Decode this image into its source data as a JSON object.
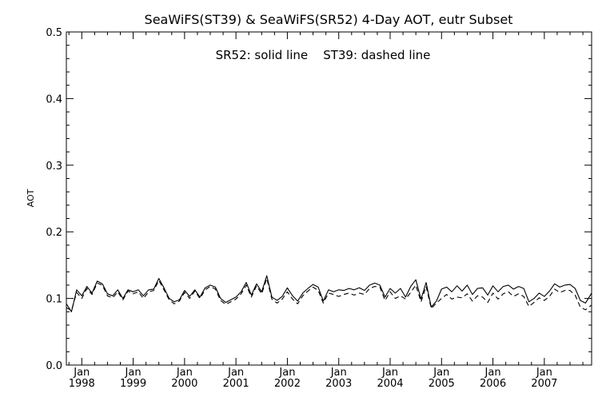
{
  "chart_data": {
    "type": "line",
    "title": "SeaWiFS(ST39) & SeaWiFS(SR52) 4-Day AOT, eutr Subset",
    "annotation": "SR52: solid line    ST39: dashed line",
    "ylabel": "AOT",
    "ylim": [
      0.0,
      0.5
    ],
    "xlim": [
      1997.7,
      2007.92
    ],
    "y_ticks": [
      "0.0",
      "0.1",
      "0.2",
      "0.3",
      "0.4",
      "0.5"
    ],
    "x_ticks": [
      {
        "month": "Jan",
        "year": "1998"
      },
      {
        "month": "Jan",
        "year": "1999"
      },
      {
        "month": "Jan",
        "year": "2000"
      },
      {
        "month": "Jan",
        "year": "2001"
      },
      {
        "month": "Jan",
        "year": "2002"
      },
      {
        "month": "Jan",
        "year": "2003"
      },
      {
        "month": "Jan",
        "year": "2004"
      },
      {
        "month": "Jan",
        "year": "2005"
      },
      {
        "month": "Jan",
        "year": "2006"
      },
      {
        "month": "Jan",
        "year": "2007"
      }
    ],
    "grid": false,
    "series": [
      {
        "name": "SR52",
        "style": "solid",
        "color": "#000000",
        "x": [
          1997.7,
          1997.8,
          1997.9,
          1998.0,
          1998.1,
          1998.2,
          1998.3,
          1998.4,
          1998.5,
          1998.6,
          1998.7,
          1998.8,
          1998.9,
          1999.0,
          1999.1,
          1999.2,
          1999.3,
          1999.4,
          1999.5,
          1999.6,
          1999.7,
          1999.8,
          1999.9,
          2000.0,
          2000.1,
          2000.2,
          2000.3,
          2000.4,
          2000.5,
          2000.6,
          2000.7,
          2000.8,
          2000.9,
          2001.0,
          2001.1,
          2001.2,
          2001.3,
          2001.4,
          2001.5,
          2001.6,
          2001.7,
          2001.8,
          2001.9,
          2002.0,
          2002.1,
          2002.2,
          2002.3,
          2002.4,
          2002.5,
          2002.6,
          2002.7,
          2002.8,
          2002.9,
          2003.0,
          2003.1,
          2003.2,
          2003.3,
          2003.4,
          2003.5,
          2003.6,
          2003.7,
          2003.8,
          2003.9,
          2004.0,
          2004.1,
          2004.2,
          2004.3,
          2004.4,
          2004.5,
          2004.6,
          2004.7,
          2004.8,
          2004.9,
          2005.0,
          2005.1,
          2005.2,
          2005.3,
          2005.4,
          2005.5,
          2005.6,
          2005.7,
          2005.8,
          2005.9,
          2006.0,
          2006.1,
          2006.2,
          2006.3,
          2006.4,
          2006.5,
          2006.6,
          2006.7,
          2006.8,
          2006.9,
          2007.0,
          2007.1,
          2007.2,
          2007.3,
          2007.4,
          2007.5,
          2007.6,
          2007.7,
          2007.8,
          2007.92
        ],
        "values": [
          0.092,
          0.08,
          0.113,
          0.104,
          0.118,
          0.108,
          0.126,
          0.122,
          0.107,
          0.104,
          0.113,
          0.1,
          0.113,
          0.11,
          0.113,
          0.104,
          0.113,
          0.114,
          0.13,
          0.116,
          0.1,
          0.095,
          0.098,
          0.112,
          0.103,
          0.113,
          0.102,
          0.116,
          0.12,
          0.117,
          0.1,
          0.094,
          0.098,
          0.102,
          0.11,
          0.124,
          0.105,
          0.122,
          0.11,
          0.134,
          0.102,
          0.097,
          0.103,
          0.116,
          0.104,
          0.096,
          0.108,
          0.115,
          0.121,
          0.117,
          0.096,
          0.113,
          0.11,
          0.113,
          0.112,
          0.115,
          0.113,
          0.116,
          0.112,
          0.12,
          0.123,
          0.12,
          0.102,
          0.115,
          0.108,
          0.115,
          0.102,
          0.118,
          0.128,
          0.099,
          0.124,
          0.087,
          0.096,
          0.114,
          0.117,
          0.11,
          0.119,
          0.111,
          0.12,
          0.106,
          0.115,
          0.116,
          0.105,
          0.119,
          0.11,
          0.118,
          0.12,
          0.114,
          0.118,
          0.115,
          0.095,
          0.1,
          0.108,
          0.103,
          0.111,
          0.122,
          0.117,
          0.12,
          0.121,
          0.115,
          0.097,
          0.093,
          0.108
        ]
      },
      {
        "name": "ST39",
        "style": "dashed",
        "color": "#000000",
        "x": [
          1997.7,
          1997.8,
          1997.9,
          1998.0,
          1998.1,
          1998.2,
          1998.3,
          1998.4,
          1998.5,
          1998.6,
          1998.7,
          1998.8,
          1998.9,
          1999.0,
          1999.1,
          1999.2,
          1999.3,
          1999.4,
          1999.5,
          1999.6,
          1999.7,
          1999.8,
          1999.9,
          2000.0,
          2000.1,
          2000.2,
          2000.3,
          2000.4,
          2000.5,
          2000.6,
          2000.7,
          2000.8,
          2000.9,
          2001.0,
          2001.1,
          2001.2,
          2001.3,
          2001.4,
          2001.5,
          2001.6,
          2001.7,
          2001.8,
          2001.9,
          2002.0,
          2002.1,
          2002.2,
          2002.3,
          2002.4,
          2002.5,
          2002.6,
          2002.7,
          2002.8,
          2002.9,
          2003.0,
          2003.1,
          2003.2,
          2003.3,
          2003.4,
          2003.5,
          2003.6,
          2003.7,
          2003.8,
          2003.9,
          2004.0,
          2004.1,
          2004.2,
          2004.3,
          2004.4,
          2004.5,
          2004.6,
          2004.7,
          2004.8,
          2004.9,
          2005.0,
          2005.1,
          2005.2,
          2005.3,
          2005.4,
          2005.5,
          2005.6,
          2005.7,
          2005.8,
          2005.9,
          2006.0,
          2006.1,
          2006.2,
          2006.3,
          2006.4,
          2006.5,
          2006.6,
          2006.7,
          2006.8,
          2006.9,
          2007.0,
          2007.1,
          2007.2,
          2007.3,
          2007.4,
          2007.5,
          2007.6,
          2007.7,
          2007.8,
          2007.92
        ],
        "values": [
          0.086,
          0.082,
          0.109,
          0.1,
          0.115,
          0.106,
          0.123,
          0.12,
          0.104,
          0.101,
          0.11,
          0.098,
          0.111,
          0.107,
          0.11,
          0.1,
          0.11,
          0.112,
          0.127,
          0.113,
          0.098,
          0.092,
          0.096,
          0.109,
          0.1,
          0.111,
          0.1,
          0.113,
          0.118,
          0.114,
          0.097,
          0.091,
          0.095,
          0.099,
          0.107,
          0.12,
          0.102,
          0.119,
          0.107,
          0.13,
          0.099,
          0.093,
          0.099,
          0.11,
          0.099,
          0.092,
          0.104,
          0.111,
          0.117,
          0.112,
          0.093,
          0.108,
          0.106,
          0.103,
          0.106,
          0.108,
          0.105,
          0.108,
          0.106,
          0.115,
          0.118,
          0.117,
          0.097,
          0.11,
          0.1,
          0.104,
          0.099,
          0.109,
          0.12,
          0.095,
          0.118,
          0.085,
          0.093,
          0.1,
          0.106,
          0.099,
          0.102,
          0.101,
          0.107,
          0.096,
          0.104,
          0.102,
          0.094,
          0.108,
          0.099,
          0.107,
          0.11,
          0.103,
          0.107,
          0.103,
          0.088,
          0.094,
          0.101,
          0.097,
          0.103,
          0.114,
          0.109,
          0.112,
          0.112,
          0.105,
          0.087,
          0.083,
          0.09
        ]
      }
    ]
  }
}
